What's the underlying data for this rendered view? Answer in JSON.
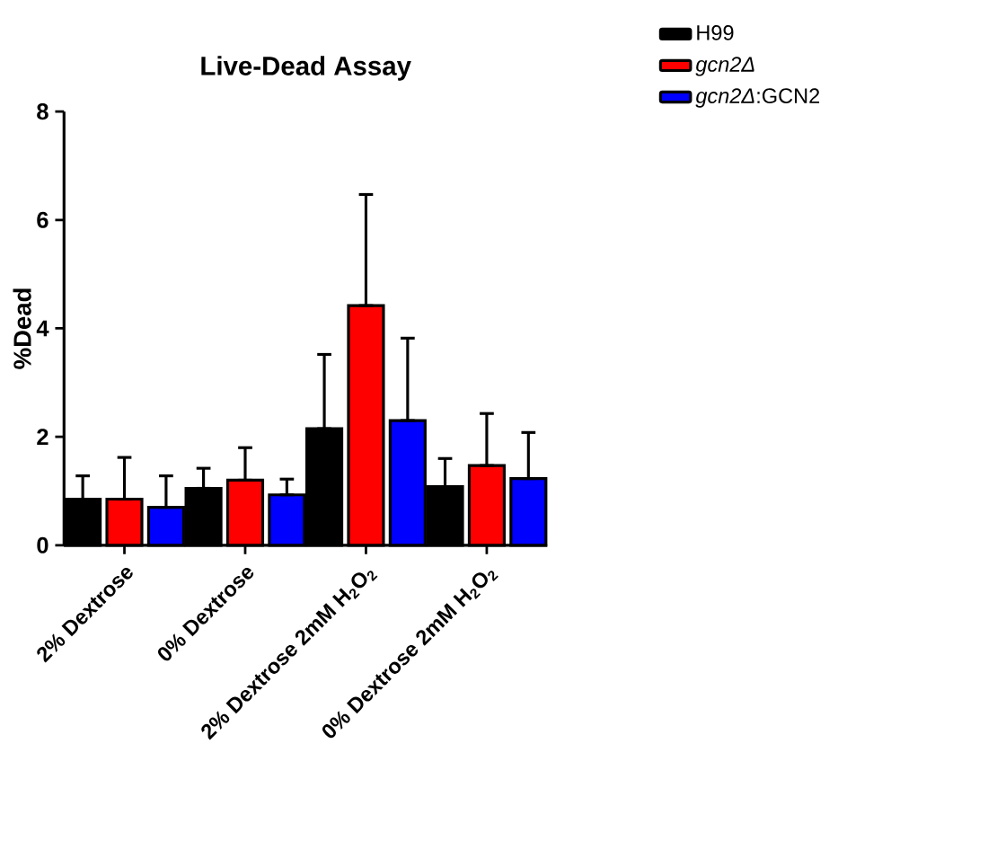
{
  "chart_data": {
    "type": "bar",
    "title": "Live-Dead Assay",
    "ylabel": "%Dead",
    "categories": [
      "2% Dextrose",
      "0% Dextrose",
      "2% Dextrose 2mM H$_{2}$O$_{2}$",
      "0% Dextrose 2mM H$_{2}$O$_{2}$"
    ],
    "series": [
      {
        "name": "H99",
        "color": "#000000",
        "values": [
          0.85,
          1.05,
          2.15,
          1.08
        ],
        "errors": [
          [
            0.85,
            1.28
          ],
          [
            1.05,
            1.42
          ],
          [
            2.15,
            3.52
          ],
          [
            1.08,
            1.6
          ]
        ]
      },
      {
        "name": "*gcn2Δ*",
        "color": "#ff0000",
        "values": [
          0.85,
          1.2,
          4.42,
          1.47
        ],
        "errors": [
          [
            0.85,
            1.62
          ],
          [
            1.2,
            1.8
          ],
          [
            4.42,
            6.47
          ],
          [
            1.47,
            2.43
          ]
        ]
      },
      {
        "name": "*gcn2Δ*:GCN2",
        "color": "#0000ff",
        "values": [
          0.7,
          0.93,
          2.3,
          1.23
        ],
        "errors": [
          [
            0.7,
            1.28
          ],
          [
            0.93,
            1.22
          ],
          [
            2.3,
            3.82
          ],
          [
            1.23,
            2.08
          ]
        ]
      }
    ],
    "ylim": [
      0,
      8
    ],
    "yticks": [
      0,
      2,
      4,
      6,
      8
    ],
    "legend": "top right",
    "grid": false
  }
}
